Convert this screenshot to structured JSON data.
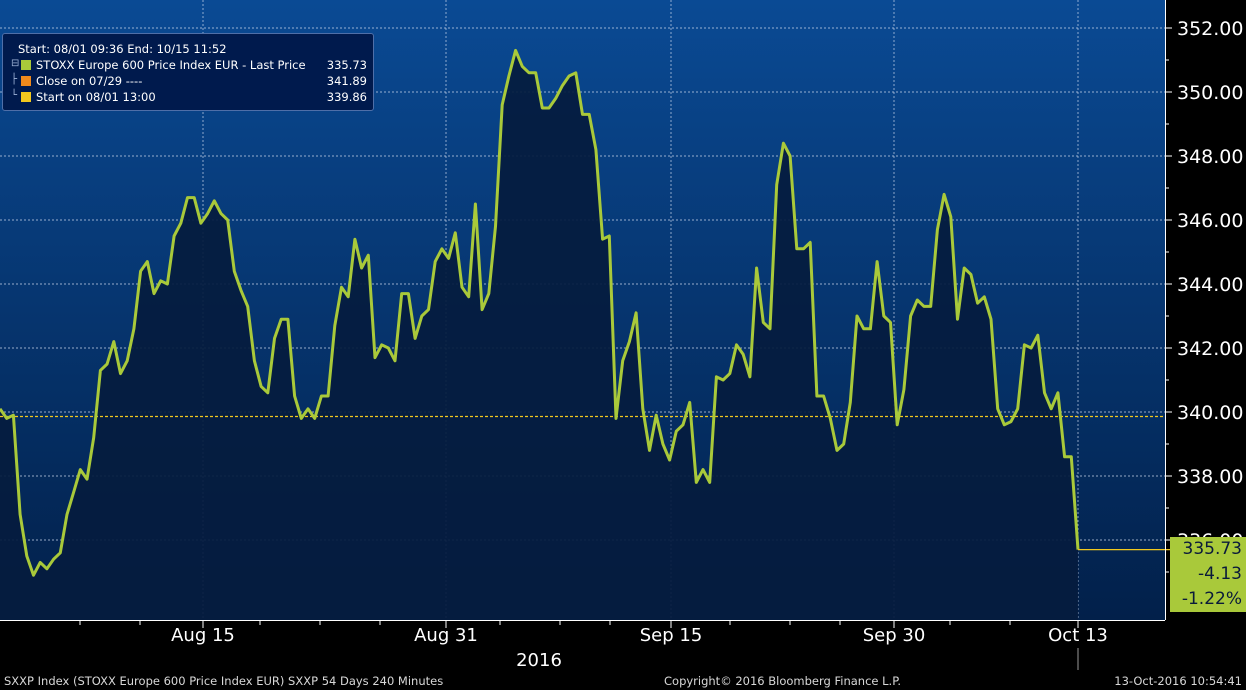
{
  "chart_data": {
    "type": "line",
    "title": "",
    "series": [
      {
        "name": "STOXX Europe 600 Price Index EUR - Last Price",
        "color": "#a9c93a",
        "values": [
          340.1,
          339.8,
          339.9,
          336.8,
          335.5,
          334.9,
          335.3,
          335.1,
          335.4,
          335.6,
          336.8,
          337.5,
          338.2,
          337.9,
          339.2,
          341.3,
          341.5,
          342.2,
          341.2,
          341.6,
          342.6,
          344.4,
          344.7,
          343.7,
          344.1,
          344.0,
          345.5,
          345.9,
          346.7,
          346.7,
          345.9,
          346.2,
          346.6,
          346.2,
          346.0,
          344.4,
          343.8,
          343.3,
          341.6,
          340.8,
          340.6,
          342.3,
          342.9,
          342.9,
          340.5,
          339.8,
          340.1,
          339.8,
          340.5,
          340.5,
          342.7,
          343.9,
          343.6,
          345.4,
          344.5,
          344.9,
          341.7,
          342.1,
          342.0,
          341.6,
          343.7,
          343.7,
          342.3,
          343.0,
          343.2,
          344.7,
          345.1,
          344.8,
          345.6,
          343.9,
          343.6,
          346.5,
          343.2,
          343.7,
          345.8,
          349.6,
          350.5,
          351.3,
          350.8,
          350.6,
          350.6,
          349.5,
          349.5,
          349.8,
          350.2,
          350.5,
          350.6,
          349.3,
          349.3,
          348.2,
          345.4,
          345.5,
          339.8,
          341.6,
          342.2,
          343.1,
          340.1,
          338.8,
          339.9,
          339.0,
          338.5,
          339.4,
          339.6,
          340.3,
          337.8,
          338.2,
          337.8,
          341.1,
          341.0,
          341.2,
          342.1,
          341.8,
          341.1,
          344.5,
          342.8,
          342.6,
          347.1,
          348.4,
          348.0,
          345.1,
          345.1,
          345.3,
          340.5,
          340.5,
          339.8,
          338.8,
          339.0,
          340.3,
          343.0,
          342.6,
          342.6,
          344.7,
          343.0,
          342.8,
          339.6,
          340.7,
          343.0,
          343.5,
          343.3,
          343.3,
          345.7,
          346.8,
          346.1,
          342.9,
          344.5,
          344.3,
          343.4,
          343.6,
          342.9,
          340.1,
          339.6,
          339.7,
          340.1,
          342.1,
          342.0,
          342.4,
          340.6,
          340.1,
          340.6,
          338.6,
          338.6,
          335.7
        ]
      }
    ],
    "x_ticks": [
      "Aug 15",
      "Aug 31",
      "Sep 15",
      "Sep 30",
      "Oct 13"
    ],
    "x_year_label": "2016",
    "y_ticks": [
      "352.00",
      "350.00",
      "348.00",
      "346.00",
      "344.00",
      "342.00",
      "340.00",
      "338.00",
      "336.00"
    ],
    "ylim": [
      334.0,
      352.5
    ],
    "reference_line": {
      "label": "Start on 08/01 13:00",
      "value": 339.86,
      "color": "#f2c81e"
    },
    "last_value_tag": {
      "price": "335.73",
      "change": "-4.13",
      "change_pct": "-1.22%"
    },
    "grid": true,
    "legend_position": "top-left"
  },
  "legend": {
    "header": "Start: 08/01 09:36 End: 10/15 11:52",
    "items": [
      {
        "label": "STOXX Europe 600 Price Index EUR - Last Price",
        "value": "335.73",
        "color": "#a9c93a"
      },
      {
        "label": "Close on 07/29 ----",
        "value": "341.89",
        "color": "#f08a1c"
      },
      {
        "label": "Start on 08/01 13:00",
        "value": "339.86",
        "color": "#f2c81e"
      }
    ]
  },
  "footer": {
    "left": "SXXP Index (STOXX Europe 600 Price Index EUR) SXXP 54 Days 240 Minutes",
    "center": "Copyright© 2016 Bloomberg Finance L.P.",
    "right": "13-Oct-2016 10:54:41"
  }
}
